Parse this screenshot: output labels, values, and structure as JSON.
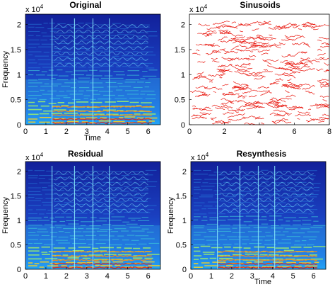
{
  "figure": {
    "panels": [
      {
        "id": "original",
        "title": "Original",
        "type": "spectrogram",
        "xlabel": "Time",
        "ylabel": "Frequency",
        "xticks": [
          "0",
          "1",
          "2",
          "3",
          "4",
          "5",
          "6"
        ],
        "yticks": [
          "0",
          "0.5",
          "1",
          "1.5",
          "2"
        ],
        "yexponent": "x 10",
        "yexponent_power": "4",
        "show_xlabel": true,
        "show_ylabel": true
      },
      {
        "id": "sinusoids",
        "title": "Sinusoids",
        "type": "sinusoid_tracks",
        "xlabel": "",
        "ylabel": "",
        "xticks": [
          "0",
          "2",
          "4",
          "6",
          "8"
        ],
        "yticks": [
          "0",
          "0.5",
          "1",
          "1.5",
          "2"
        ],
        "yexponent": "x 10",
        "yexponent_power": "4",
        "show_xlabel": false,
        "show_ylabel": false
      },
      {
        "id": "residual",
        "title": "Residual",
        "type": "spectrogram",
        "xlabel": "",
        "ylabel": "Frequency",
        "xticks": [
          "0",
          "1",
          "2",
          "3",
          "4",
          "5",
          "6"
        ],
        "yticks": [
          "0",
          "0.5",
          "1",
          "1.5",
          "2"
        ],
        "yexponent": "x 10",
        "yexponent_power": "4",
        "show_xlabel": false,
        "show_ylabel": true
      },
      {
        "id": "resynthesis",
        "title": "Resynthesis",
        "type": "spectrogram",
        "xlabel": "Time",
        "ylabel": "Frequency",
        "xticks": [
          "0",
          "1",
          "2",
          "3",
          "4",
          "5",
          "6"
        ],
        "yticks": [
          "0",
          "0.5",
          "1",
          "1.5",
          "2"
        ],
        "yexponent": "x 10",
        "yexponent_power": "4",
        "show_xlabel": true,
        "show_ylabel": true
      }
    ]
  },
  "chart_data": [
    {
      "type": "heatmap",
      "title": "Original",
      "xlabel": "Time",
      "ylabel": "Frequency",
      "xlim": [
        0,
        6.6
      ],
      "ylim": [
        0,
        22050
      ],
      "colormap": "jet",
      "note_onsets_s": [
        1.3,
        2.4,
        3.3,
        4.1
      ]
    },
    {
      "type": "line",
      "title": "Sinusoids",
      "xlabel": "",
      "ylabel": "",
      "xlim": [
        0,
        8
      ],
      "ylim": [
        0,
        22050
      ],
      "line_color": "#e8150c"
    },
    {
      "type": "heatmap",
      "title": "Residual",
      "xlabel": "",
      "ylabel": "Frequency",
      "xlim": [
        0,
        6.6
      ],
      "ylim": [
        0,
        22050
      ],
      "colormap": "jet"
    },
    {
      "type": "heatmap",
      "title": "Resynthesis",
      "xlabel": "Time",
      "ylabel": "Frequency",
      "xlim": [
        0,
        6.6
      ],
      "ylim": [
        0,
        22050
      ],
      "colormap": "jet"
    }
  ]
}
